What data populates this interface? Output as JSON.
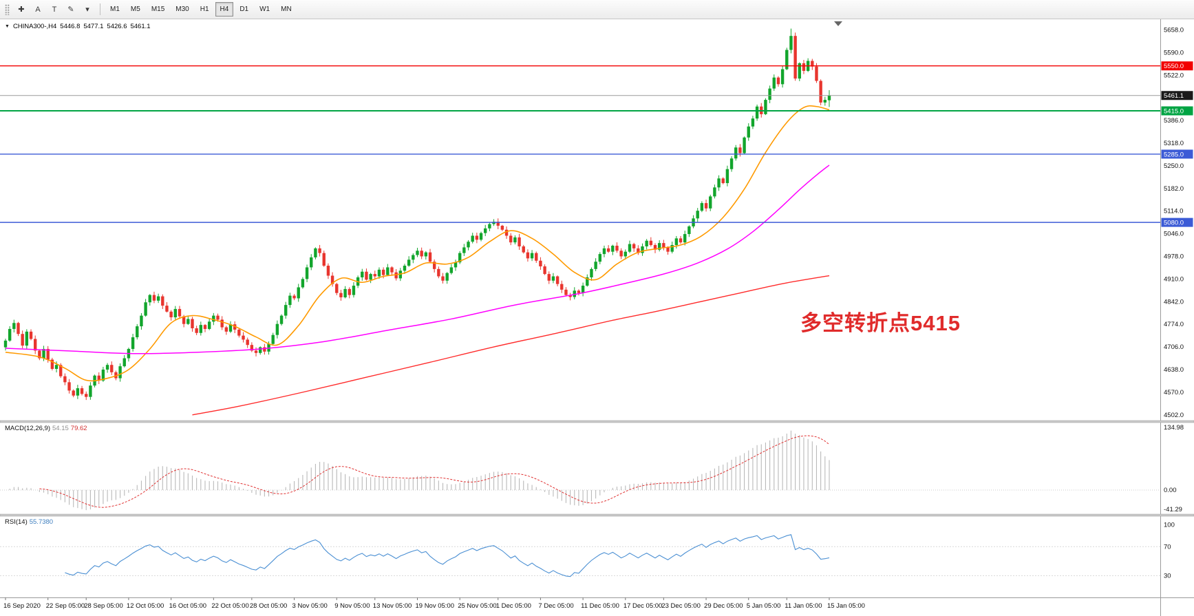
{
  "toolbar": {
    "tools": [
      {
        "name": "crosshair-tool",
        "glyph": "✚"
      },
      {
        "name": "text-label-tool",
        "glyph": "A"
      },
      {
        "name": "text-tool",
        "glyph": "T"
      },
      {
        "name": "drawing-tool",
        "glyph": "✎"
      },
      {
        "name": "drawing-dropdown",
        "glyph": "▾"
      }
    ],
    "timeframes": [
      "M1",
      "M5",
      "M15",
      "M30",
      "H1",
      "H4",
      "D1",
      "W1",
      "MN"
    ],
    "active_timeframe": "H4"
  },
  "chart": {
    "title": {
      "dropdown_glyph": "▼",
      "symbol_period": "CHINA300-,H4",
      "open": "5446.8",
      "high": "5477.1",
      "low": "5426.6",
      "close": "5461.1"
    },
    "annotation": {
      "text": "多空转折点5415",
      "color": "#e02b2b"
    },
    "y_range": [
      4485,
      5690
    ],
    "y_ticks": [
      5658,
      5590,
      5522,
      5454,
      5386,
      5318,
      5250,
      5182,
      5114,
      5046,
      4978,
      4910,
      4842,
      4774,
      4706,
      4638,
      4570,
      4502
    ],
    "levels": [
      {
        "price": 5550,
        "label": "5550.0",
        "color": "#f20000",
        "width": 1.4
      },
      {
        "price": 5415,
        "label": "5415.0",
        "color": "#00a443",
        "width": 2
      },
      {
        "price": 5285,
        "label": "5285.0",
        "color": "#3c5bd6",
        "width": 1.4
      },
      {
        "price": 5080,
        "label": "5080.0",
        "color": "#3c5bd6",
        "width": 1.4
      }
    ],
    "current_price": {
      "value": 5461.1,
      "label": "5461.1",
      "line_color": "#9a9a9a",
      "badge_color": "#1a1a1a"
    },
    "colors": {
      "up": "#12a52c",
      "down": "#e8352e",
      "background": "#ffffff"
    },
    "x_labels": [
      "16 Sep 2020",
      "22 Sep 05:00",
      "28 Sep 05:00",
      "12 Oct 05:00",
      "16 Oct 05:00",
      "22 Oct 05:00",
      "28 Oct 05:00",
      "3 Nov 05:00",
      "9 Nov 05:00",
      "13 Nov 05:00",
      "19 Nov 05:00",
      "25 Nov 05:00",
      "1 Dec 05:00",
      "7 Dec 05:00",
      "11 Dec 05:00",
      "17 Dec 05:00",
      "23 Dec 05:00",
      "29 Dec 05:00",
      "5 Jan 05:00",
      "11 Jan 05:00",
      "15 Jan 05:00"
    ],
    "x_label_bars": [
      0,
      10,
      19,
      29,
      39,
      49,
      58,
      68,
      78,
      87,
      97,
      107,
      116,
      126,
      136,
      146,
      155,
      165,
      175,
      184,
      194
    ]
  },
  "chart_data": {
    "type": "candlestick",
    "symbol": "CHINA300-",
    "period": "H4",
    "closes": [
      4725,
      4760,
      4778,
      4745,
      4710,
      4752,
      4730,
      4695,
      4672,
      4700,
      4668,
      4640,
      4652,
      4618,
      4600,
      4575,
      4560,
      4582,
      4565,
      4556,
      4590,
      4620,
      4605,
      4638,
      4652,
      4630,
      4612,
      4648,
      4672,
      4700,
      4735,
      4768,
      4800,
      4840,
      4862,
      4845,
      4858,
      4830,
      4812,
      4795,
      4820,
      4798,
      4775,
      4790,
      4762,
      4748,
      4772,
      4760,
      4782,
      4800,
      4788,
      4765,
      4752,
      4774,
      4758,
      4740,
      4728,
      4712,
      4695,
      4688,
      4705,
      4692,
      4715,
      4742,
      4775,
      4800,
      4832,
      4860,
      4852,
      4885,
      4910,
      4945,
      4975,
      5002,
      4988,
      4950,
      4920,
      4895,
      4868,
      4855,
      4880,
      4862,
      4890,
      4915,
      4932,
      4908,
      4925,
      4918,
      4938,
      4922,
      4945,
      4930,
      4912,
      4935,
      4950,
      4968,
      4982,
      4995,
      4978,
      4990,
      4962,
      4940,
      4918,
      4905,
      4928,
      4945,
      4960,
      4988,
      5005,
      5022,
      5040,
      5028,
      5048,
      5062,
      5075,
      5082,
      5070,
      5058,
      5040,
      5020,
      5035,
      5008,
      4990,
      4972,
      4988,
      4965,
      4948,
      4925,
      4905,
      4918,
      4895,
      4878,
      4862,
      4856,
      4875,
      4868,
      4890,
      4915,
      4940,
      4962,
      4985,
      5002,
      4992,
      5010,
      4995,
      4978,
      4992,
      5015,
      5002,
      4988,
      5008,
      5025,
      5012,
      4998,
      5018,
      5005,
      4992,
      5012,
      5032,
      5020,
      5045,
      5068,
      5092,
      5115,
      5138,
      5122,
      5158,
      5185,
      5212,
      5198,
      5240,
      5272,
      5305,
      5288,
      5335,
      5368,
      5392,
      5428,
      5405,
      5448,
      5482,
      5515,
      5495,
      5540,
      5598,
      5640,
      5512,
      5558,
      5535,
      5565,
      5548,
      5505,
      5440,
      5448,
      5461.1
    ],
    "last_candle": {
      "open": 5446.8,
      "high": 5477.1,
      "low": 5426.6,
      "close": 5461.1
    },
    "special_highs": {
      "185": 5662
    },
    "moving_averages": [
      {
        "name": "ma-fast",
        "color": "#ff9a00",
        "width": 1.6,
        "points": [
          [
            0,
            4690
          ],
          [
            8,
            4676
          ],
          [
            14,
            4642
          ],
          [
            19,
            4606
          ],
          [
            24,
            4612
          ],
          [
            29,
            4638
          ],
          [
            34,
            4700
          ],
          [
            39,
            4778
          ],
          [
            44,
            4800
          ],
          [
            49,
            4788
          ],
          [
            54,
            4768
          ],
          [
            59,
            4736
          ],
          [
            64,
            4712
          ],
          [
            69,
            4770
          ],
          [
            74,
            4860
          ],
          [
            79,
            4912
          ],
          [
            84,
            4900
          ],
          [
            89,
            4918
          ],
          [
            94,
            4928
          ],
          [
            99,
            4958
          ],
          [
            104,
            4955
          ],
          [
            109,
            4975
          ],
          [
            114,
            5022
          ],
          [
            119,
            5055
          ],
          [
            124,
            5032
          ],
          [
            129,
            4985
          ],
          [
            134,
            4930
          ],
          [
            139,
            4908
          ],
          [
            144,
            4955
          ],
          [
            149,
            4990
          ],
          [
            154,
            5002
          ],
          [
            159,
            5012
          ],
          [
            164,
            5040
          ],
          [
            169,
            5095
          ],
          [
            174,
            5180
          ],
          [
            179,
            5290
          ],
          [
            184,
            5380
          ],
          [
            188,
            5425
          ],
          [
            191,
            5428
          ],
          [
            194,
            5418
          ]
        ]
      },
      {
        "name": "ma-mid",
        "color": "#ff00ff",
        "width": 1.5,
        "points": [
          [
            0,
            4702
          ],
          [
            15,
            4694
          ],
          [
            30,
            4686
          ],
          [
            45,
            4690
          ],
          [
            60,
            4700
          ],
          [
            75,
            4722
          ],
          [
            90,
            4756
          ],
          [
            105,
            4790
          ],
          [
            120,
            4832
          ],
          [
            135,
            4866
          ],
          [
            145,
            4894
          ],
          [
            155,
            4925
          ],
          [
            163,
            4958
          ],
          [
            170,
            5000
          ],
          [
            176,
            5052
          ],
          [
            182,
            5118
          ],
          [
            187,
            5178
          ],
          [
            191,
            5222
          ],
          [
            194,
            5252
          ]
        ]
      },
      {
        "name": "ma-slow",
        "color": "#ff2a2a",
        "width": 1.4,
        "points": [
          [
            44,
            4502
          ],
          [
            55,
            4528
          ],
          [
            70,
            4570
          ],
          [
            85,
            4615
          ],
          [
            100,
            4660
          ],
          [
            115,
            4706
          ],
          [
            130,
            4748
          ],
          [
            143,
            4786
          ],
          [
            153,
            4812
          ],
          [
            163,
            4840
          ],
          [
            173,
            4868
          ],
          [
            183,
            4896
          ],
          [
            194,
            4920
          ]
        ]
      }
    ]
  },
  "macd": {
    "label": "MACD(12,26,9)",
    "value_main": "54.15",
    "value_signal": "79.62",
    "fast": 12,
    "slow": 26,
    "signal": 9,
    "histogram_color": "#b9b9b9",
    "signal_color": "#e03030",
    "ticks": [
      {
        "label": "134.98",
        "value": 134.98
      },
      {
        "label": "0.00",
        "value": 0
      },
      {
        "label": "-41.29",
        "value": -41.29
      }
    ]
  },
  "rsi": {
    "label": "RSI(14)",
    "value": "55.7380",
    "period": 14,
    "line_color": "#4a8fd3",
    "levels": [
      70,
      30
    ],
    "ticks": [
      {
        "label": "100",
        "value": 100
      },
      {
        "label": "70",
        "value": 70
      },
      {
        "label": "30",
        "value": 30
      }
    ]
  }
}
